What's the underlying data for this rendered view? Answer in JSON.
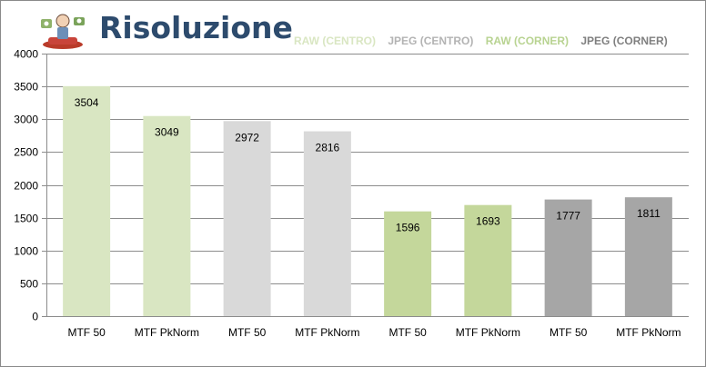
{
  "title": "Risoluzione",
  "logo": "mascot-logo",
  "legend": [
    {
      "name": "RAW (CENTRO)",
      "color": "#d9e6c2"
    },
    {
      "name": "JPEG (CENTRO)",
      "color": "#b3b3b3"
    },
    {
      "name": "RAW (CORNER)",
      "color": "#b8d391"
    },
    {
      "name": "JPEG (CORNER)",
      "color": "#7f7f7f"
    }
  ],
  "chart_data": {
    "type": "bar",
    "title": "Risoluzione",
    "categories": [
      "MTF 50",
      "MTF PkNorm",
      "MTF 50",
      "MTF PkNorm",
      "MTF 50",
      "MTF PkNorm",
      "MTF 50",
      "MTF PkNorm"
    ],
    "values": [
      3504,
      3049,
      2972,
      2816,
      1596,
      1693,
      1777,
      1811
    ],
    "data_labels": [
      "3504",
      "3049",
      "2972",
      "2816",
      "1596",
      "1693",
      "1777",
      "1811"
    ],
    "bar_colors": [
      "#d9e6c2",
      "#d9e6c2",
      "#d9d9d9",
      "#d9d9d9",
      "#c4d79b",
      "#c4d79b",
      "#a6a6a6",
      "#a6a6a6"
    ],
    "series_groups": [
      "RAW (CENTRO)",
      "JPEG (CENTRO)",
      "RAW (CORNER)",
      "JPEG (CORNER)"
    ],
    "ylim": [
      0,
      4000
    ],
    "yticks": [
      0,
      500,
      1000,
      1500,
      2000,
      2500,
      3000,
      3500,
      4000
    ],
    "ytick_labels": [
      "0",
      "500",
      "1000",
      "1500",
      "2000",
      "2500",
      "3000",
      "3500",
      "4000"
    ],
    "grid": true,
    "legend_position": "top-right",
    "xlabel": "",
    "ylabel": ""
  }
}
